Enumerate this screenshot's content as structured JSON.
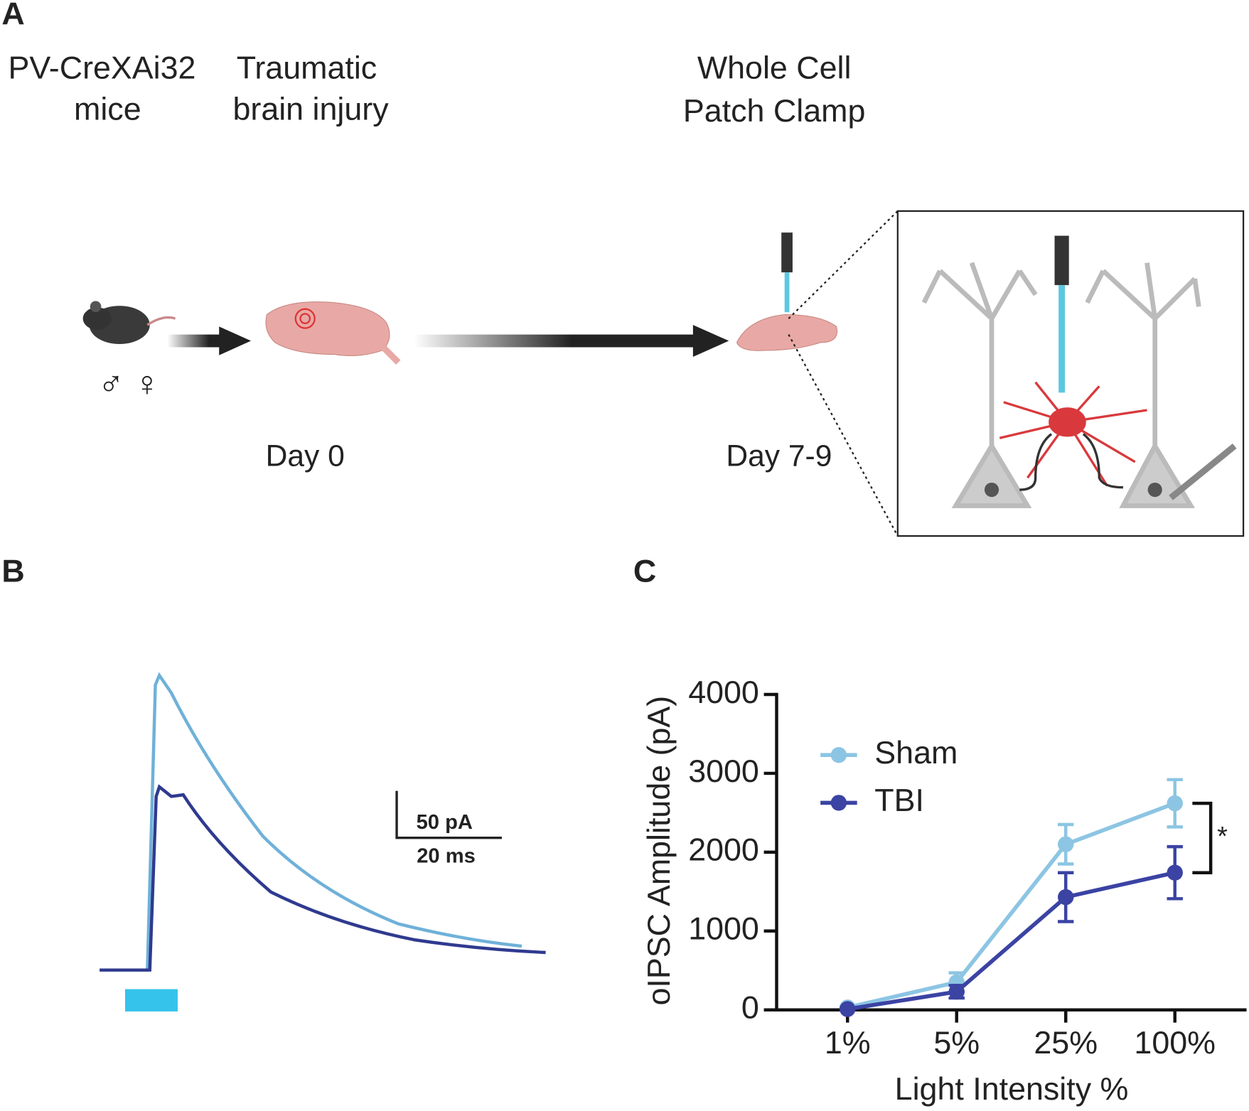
{
  "panel_a": {
    "label": "A",
    "mice": [
      "PV-CreXAi32",
      "mice"
    ],
    "sexes": "♂ ♀",
    "injury": [
      "Traumatic",
      "brain injury"
    ],
    "recording": [
      "Whole Cell",
      "Patch Clamp"
    ],
    "day_start": "Day 0",
    "day_end": "Day 7-9"
  },
  "panel_b": {
    "label": "B",
    "scale_current": "50 pA",
    "scale_time": "20 ms"
  },
  "panel_c": {
    "label": "C"
  },
  "chart_data": {
    "type": "line",
    "categories": [
      "1%",
      "5%",
      "25%",
      "100%"
    ],
    "series": [
      {
        "name": "Sham",
        "color": "#8cc5e3",
        "values": [
          30,
          350,
          2100,
          2620
        ],
        "errors": [
          10,
          120,
          250,
          300
        ]
      },
      {
        "name": "TBI",
        "color": "#3b43a3",
        "values": [
          10,
          230,
          1430,
          1740
        ],
        "errors": [
          5,
          80,
          310,
          330
        ]
      }
    ],
    "ylim": [
      0,
      4000
    ],
    "yticks": [
      0,
      1000,
      2000,
      3000,
      4000
    ],
    "y_label": "oIPSC Amplitude (pA)",
    "x_label": "Light Intensity %",
    "annotation": "*",
    "legend": "upper left"
  }
}
